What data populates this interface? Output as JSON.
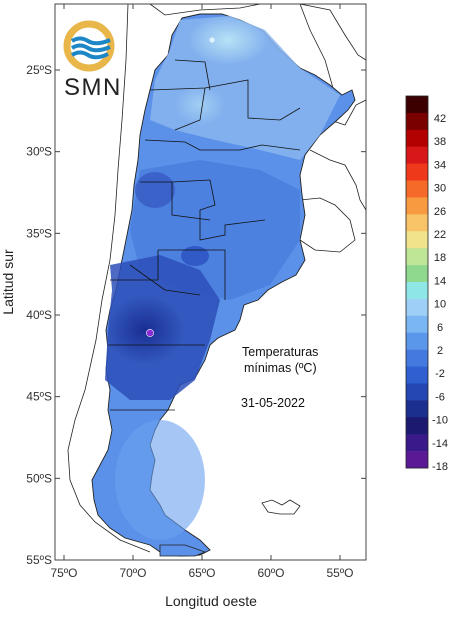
{
  "logo": {
    "text": "SMN"
  },
  "axes": {
    "xlabel": "Longitud oeste",
    "ylabel": "Latitud sur",
    "xticks": [
      "75ºO",
      "70ºO",
      "65ºO",
      "60ºO",
      "55ºO"
    ],
    "yticks": [
      "25ºS",
      "30ºS",
      "35ºS",
      "40ºS",
      "45ºS",
      "50ºS",
      "55ºS"
    ]
  },
  "annotation": {
    "line1": "Temperaturas",
    "line2": "mínimas (ºC)",
    "date": "31-05-2022"
  },
  "colorbar": {
    "labels": [
      "42",
      "38",
      "34",
      "30",
      "26",
      "22",
      "18",
      "14",
      "10",
      "6",
      "2",
      "-2",
      "-6",
      "-10",
      "-14",
      "-18"
    ],
    "colors": [
      "#3d0000",
      "#7a0000",
      "#b30000",
      "#d81818",
      "#ee3a1a",
      "#f56a28",
      "#f89a40",
      "#f9c467",
      "#efe48c",
      "#bfe596",
      "#8ed98e",
      "#8ee6e6",
      "#9ecff7",
      "#7ab6f2",
      "#5a96ea",
      "#4479e0",
      "#2f5fd0",
      "#2447b4",
      "#1b2f8e",
      "#1c1a70",
      "#3a1a8a",
      "#5a1a96"
    ]
  },
  "chart_data": {
    "type": "heatmap",
    "title": "Temperaturas mínimas (ºC)",
    "date": "31-05-2022",
    "xlabel": "Longitud oeste",
    "ylabel": "Latitud sur",
    "xlim": [
      -76,
      -53
    ],
    "ylim": [
      -55,
      -21
    ],
    "colorbar_levels": [
      42,
      38,
      34,
      30,
      26,
      22,
      18,
      14,
      10,
      6,
      2,
      -2,
      -6,
      -10,
      -14,
      -18
    ],
    "units": "ºC",
    "legend_position": "right",
    "grid": false
  }
}
